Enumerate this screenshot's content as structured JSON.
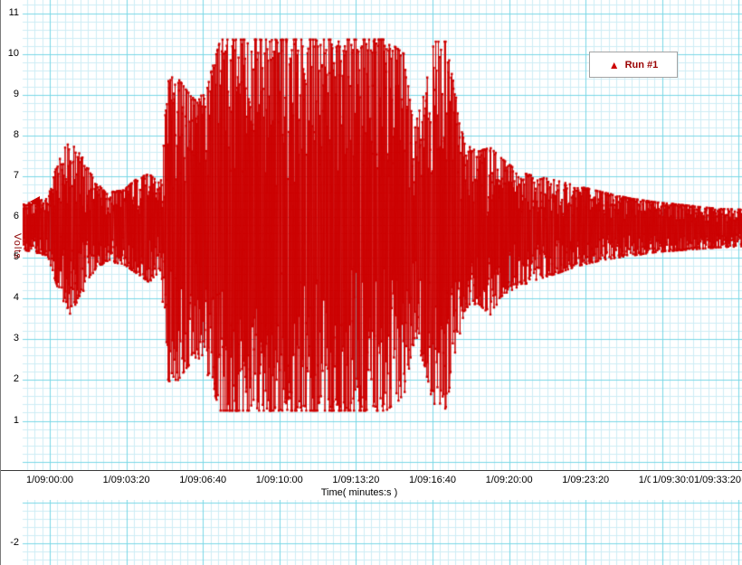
{
  "axes": {
    "x_title": "Time( minutes:s )",
    "y_title": "Volts",
    "y_ticks": [
      {
        "label": "11",
        "value": 11
      },
      {
        "label": "10",
        "value": 10
      },
      {
        "label": "9",
        "value": 9
      },
      {
        "label": "8",
        "value": 8
      },
      {
        "label": "7",
        "value": 7
      },
      {
        "label": "6",
        "value": 6
      },
      {
        "label": "5",
        "value": 5
      },
      {
        "label": "4",
        "value": 4
      },
      {
        "label": "3",
        "value": 3
      },
      {
        "label": "2",
        "value": 2
      },
      {
        "label": "1",
        "value": 1
      },
      {
        "label": "-2",
        "value": -2
      }
    ],
    "x_ticks": [
      "1/09:00:00",
      "1/09:03:20",
      "1/09:06:40",
      "1/09:10:00",
      "1/09:13:20",
      "1/09:16:40",
      "1/09:20:00",
      "1/09:23:20",
      "1/09:26:40"
    ],
    "x_overflow": [
      "1/09:30:0",
      "1/09:33:20"
    ]
  },
  "legend": {
    "label": "Run #1",
    "marker_glyph": "▲",
    "marker_color": "#cc0000",
    "text_color": "#990000"
  },
  "marker": {
    "shape": "left-triangle",
    "value": 6.38,
    "color": "#cc0000"
  },
  "colors": {
    "series": "#cc0000",
    "grid_minor": "#cdedf5",
    "grid_major": "#79d7e6",
    "axis_line": "#3a3a3a",
    "text": "#000000",
    "background": "#ffffff"
  },
  "chart_data": {
    "type": "line",
    "title": "",
    "xlabel": "Time( minutes:s )",
    "ylabel": "Volts",
    "x_tick_labels": [
      "1/09:00:00",
      "1/09:03:20",
      "1/09:06:40",
      "1/09:10:00",
      "1/09:13:20",
      "1/09:16:40",
      "1/09:20:00",
      "1/09:23:20",
      "1/09:26:40",
      "1/09:30:0",
      "1/09:33:20"
    ],
    "y_tick_labels": [
      "11",
      "10",
      "9",
      "8",
      "7",
      "6",
      "5",
      "4",
      "3",
      "2",
      "1",
      "-2"
    ],
    "ylim_visible": [
      -2.6,
      11.2
    ],
    "grid": true,
    "legend_position": "top-right",
    "series": [
      {
        "name": "Run #1",
        "color": "#cc0000",
        "baseline": 5.7,
        "clip_low": 1.25,
        "clip_high": 10.35,
        "representation": "amplitude_envelope",
        "samples": 2200,
        "envelope_points": [
          [
            0.0,
            5.2,
            6.3
          ],
          [
            0.035,
            5.05,
            6.45
          ],
          [
            0.048,
            4.3,
            7.3
          ],
          [
            0.065,
            3.6,
            8.05
          ],
          [
            0.085,
            4.2,
            7.4
          ],
          [
            0.1,
            4.7,
            6.9
          ],
          [
            0.115,
            4.9,
            6.6
          ],
          [
            0.14,
            4.85,
            6.65
          ],
          [
            0.16,
            4.6,
            6.95
          ],
          [
            0.176,
            4.4,
            7.05
          ],
          [
            0.192,
            4.7,
            6.8
          ],
          [
            0.201,
            2.0,
            9.3
          ],
          [
            0.212,
            1.9,
            9.5
          ],
          [
            0.228,
            2.3,
            9.1
          ],
          [
            0.243,
            2.6,
            8.8
          ],
          [
            0.258,
            2.1,
            9.3
          ],
          [
            0.275,
            1.25,
            10.35
          ],
          [
            0.31,
            1.25,
            10.35
          ],
          [
            0.35,
            1.25,
            10.35
          ],
          [
            0.39,
            1.25,
            10.35
          ],
          [
            0.43,
            1.25,
            10.35
          ],
          [
            0.47,
            1.25,
            10.35
          ],
          [
            0.505,
            1.25,
            10.35
          ],
          [
            0.53,
            1.6,
            10.0
          ],
          [
            0.545,
            3.0,
            8.2
          ],
          [
            0.558,
            2.4,
            9.0
          ],
          [
            0.572,
            1.3,
            10.3
          ],
          [
            0.588,
            1.3,
            10.3
          ],
          [
            0.6,
            2.4,
            9.2
          ],
          [
            0.614,
            3.7,
            7.8
          ],
          [
            0.632,
            3.9,
            7.6
          ],
          [
            0.65,
            3.6,
            7.7
          ],
          [
            0.668,
            4.1,
            7.4
          ],
          [
            0.69,
            4.3,
            7.1
          ],
          [
            0.712,
            4.45,
            7.0
          ],
          [
            0.74,
            4.6,
            6.9
          ],
          [
            0.772,
            4.8,
            6.75
          ],
          [
            0.808,
            4.95,
            6.6
          ],
          [
            0.845,
            5.05,
            6.45
          ],
          [
            0.885,
            5.15,
            6.35
          ],
          [
            0.925,
            5.2,
            6.28
          ],
          [
            0.965,
            5.25,
            6.2
          ],
          [
            1.0,
            5.28,
            6.18
          ]
        ]
      }
    ]
  }
}
